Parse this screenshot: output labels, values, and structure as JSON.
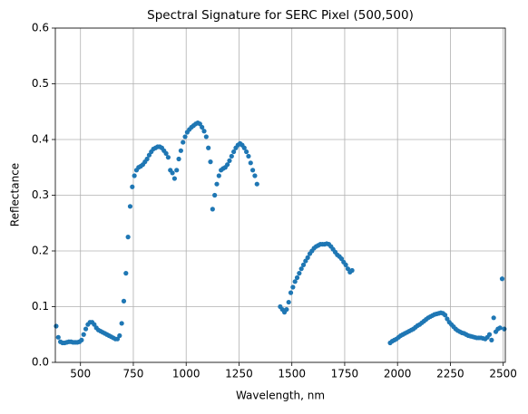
{
  "chart_data": {
    "type": "scatter",
    "title": "Spectral Signature for SERC Pixel (500,500)",
    "x_label": "Wavelength, nm",
    "y_label": "Reflectance",
    "color": "#1f77b4",
    "grid": true,
    "xlim": [
      381,
      2510
    ],
    "ylim": [
      0,
      0.6
    ],
    "xticks": [
      500,
      750,
      1000,
      1250,
      1500,
      1750,
      2000,
      2250,
      2500
    ],
    "yticks": [
      {
        "value": 0,
        "label": "0.0"
      },
      0.1,
      0.2,
      0.3,
      0.4,
      0.5,
      0.6
    ],
    "x": [
      385,
      395,
      405,
      415,
      425,
      435,
      445,
      455,
      465,
      475,
      485,
      495,
      505,
      515,
      525,
      535,
      545,
      555,
      565,
      575,
      585,
      595,
      605,
      615,
      625,
      635,
      645,
      655,
      665,
      675,
      685,
      695,
      705,
      715,
      725,
      735,
      745,
      755,
      765,
      775,
      785,
      795,
      805,
      815,
      825,
      835,
      845,
      855,
      865,
      875,
      885,
      895,
      905,
      915,
      925,
      935,
      945,
      955,
      965,
      975,
      985,
      995,
      1005,
      1015,
      1025,
      1035,
      1045,
      1055,
      1065,
      1075,
      1085,
      1095,
      1105,
      1115,
      1125,
      1135,
      1145,
      1155,
      1165,
      1175,
      1185,
      1195,
      1205,
      1215,
      1225,
      1235,
      1245,
      1255,
      1265,
      1275,
      1285,
      1295,
      1305,
      1315,
      1325,
      1335,
      1445,
      1455,
      1465,
      1475,
      1485,
      1495,
      1505,
      1515,
      1525,
      1535,
      1545,
      1555,
      1565,
      1575,
      1585,
      1595,
      1605,
      1615,
      1625,
      1635,
      1645,
      1655,
      1665,
      1675,
      1685,
      1695,
      1705,
      1715,
      1725,
      1735,
      1745,
      1755,
      1765,
      1775,
      1785,
      1965,
      1975,
      1985,
      1995,
      2005,
      2015,
      2025,
      2035,
      2045,
      2055,
      2065,
      2075,
      2085,
      2095,
      2105,
      2115,
      2125,
      2135,
      2145,
      2155,
      2165,
      2175,
      2185,
      2195,
      2205,
      2215,
      2225,
      2235,
      2245,
      2255,
      2265,
      2275,
      2285,
      2295,
      2305,
      2315,
      2325,
      2335,
      2345,
      2355,
      2365,
      2375,
      2385,
      2395,
      2405,
      2415,
      2425,
      2435,
      2445,
      2455,
      2465,
      2475,
      2485,
      2495,
      2505
    ],
    "values": [
      0.065,
      0.045,
      0.037,
      0.035,
      0.035,
      0.036,
      0.037,
      0.037,
      0.036,
      0.036,
      0.036,
      0.037,
      0.04,
      0.05,
      0.06,
      0.068,
      0.072,
      0.072,
      0.068,
      0.062,
      0.058,
      0.056,
      0.054,
      0.052,
      0.05,
      0.048,
      0.046,
      0.044,
      0.042,
      0.042,
      0.048,
      0.07,
      0.11,
      0.16,
      0.225,
      0.28,
      0.315,
      0.335,
      0.345,
      0.35,
      0.352,
      0.355,
      0.36,
      0.365,
      0.372,
      0.378,
      0.383,
      0.385,
      0.387,
      0.387,
      0.385,
      0.38,
      0.375,
      0.368,
      0.345,
      0.34,
      0.33,
      0.345,
      0.365,
      0.38,
      0.395,
      0.405,
      0.413,
      0.418,
      0.422,
      0.425,
      0.428,
      0.43,
      0.428,
      0.422,
      0.415,
      0.405,
      0.385,
      0.36,
      0.275,
      0.3,
      0.32,
      0.335,
      0.345,
      0.348,
      0.35,
      0.355,
      0.362,
      0.37,
      0.378,
      0.385,
      0.39,
      0.393,
      0.39,
      0.385,
      0.378,
      0.37,
      0.358,
      0.345,
      0.335,
      0.32,
      0.1,
      0.095,
      0.09,
      0.095,
      0.108,
      0.125,
      0.135,
      0.145,
      0.152,
      0.16,
      0.168,
      0.175,
      0.182,
      0.188,
      0.195,
      0.2,
      0.205,
      0.208,
      0.21,
      0.212,
      0.212,
      0.212,
      0.213,
      0.212,
      0.208,
      0.203,
      0.198,
      0.193,
      0.19,
      0.186,
      0.18,
      0.175,
      0.168,
      0.162,
      0.165,
      0.035,
      0.038,
      0.04,
      0.042,
      0.045,
      0.048,
      0.05,
      0.052,
      0.054,
      0.056,
      0.058,
      0.06,
      0.063,
      0.066,
      0.068,
      0.071,
      0.074,
      0.077,
      0.08,
      0.082,
      0.084,
      0.086,
      0.087,
      0.088,
      0.089,
      0.088,
      0.085,
      0.078,
      0.072,
      0.068,
      0.064,
      0.06,
      0.057,
      0.055,
      0.053,
      0.052,
      0.05,
      0.048,
      0.047,
      0.046,
      0.045,
      0.044,
      0.044,
      0.044,
      0.043,
      0.042,
      0.045,
      0.05,
      0.04,
      0.08,
      0.055,
      0.06,
      0.062,
      0.15,
      0.06
    ]
  }
}
